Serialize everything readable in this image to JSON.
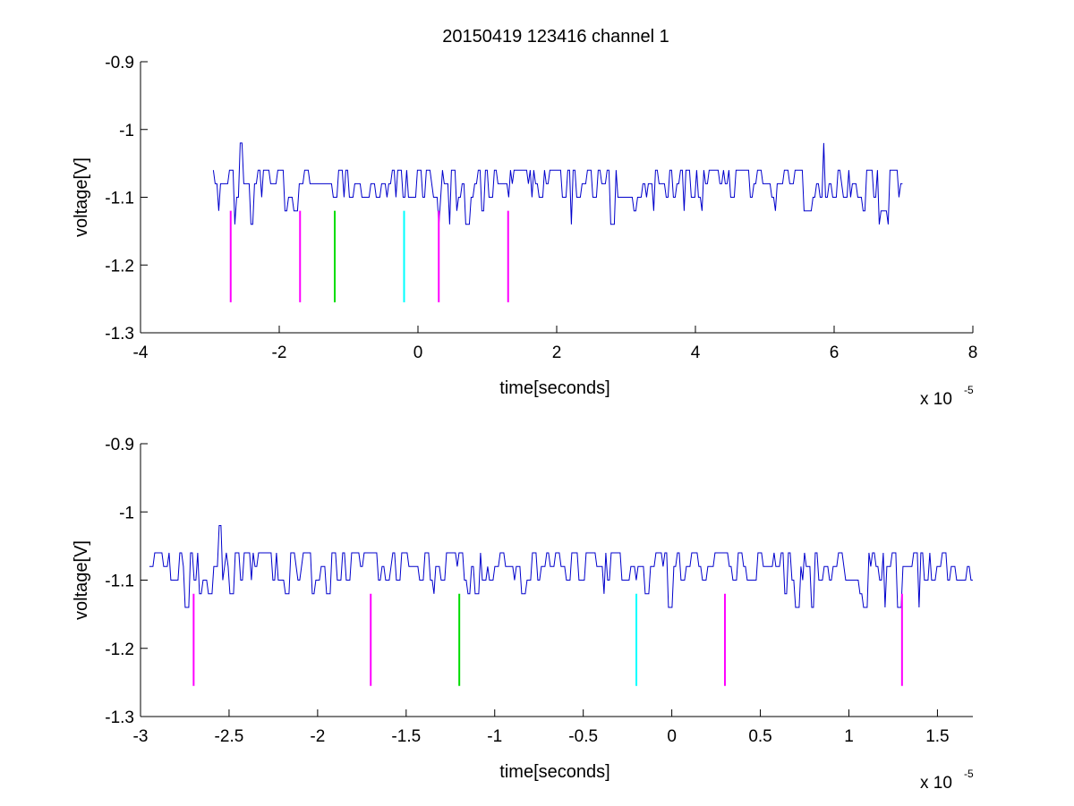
{
  "figure": {
    "title": "20150419 123416 channel 1"
  },
  "colors": {
    "trace": "#0000cc",
    "magenta": "#ff00ff",
    "green": "#00dd00",
    "cyan": "#00ffff"
  },
  "chart_data": [
    {
      "type": "line",
      "title": "20150419 123416 channel 1",
      "xlabel": "time[seconds]",
      "ylabel": "voltage[V]",
      "x_multiplier": "x 10",
      "x_multiplier_exp": "-5",
      "xlim": [
        -4,
        8
      ],
      "ylim": [
        -1.3,
        -0.9
      ],
      "y_reversed": true,
      "xticks": [
        -4,
        -2,
        0,
        2,
        4,
        6,
        8
      ],
      "xtick_labels": [
        "-4",
        "-2",
        "0",
        "2",
        "4",
        "6",
        "8"
      ],
      "yticks": [
        -0.9,
        -1,
        -1.1,
        -1.2,
        -1.3
      ],
      "ytick_labels": [
        "-0.9",
        "-1",
        "-1.1",
        "-1.2",
        "-1.3"
      ],
      "grid": false,
      "series": [
        {
          "style": "noisy-digitized",
          "x_range": [
            -2.95,
            7.0
          ],
          "baseline": -1.1,
          "levels": [
            -1.06,
            -1.08,
            -1.1,
            -1.12,
            -1.14
          ],
          "spikes": [
            {
              "x": -2.55,
              "y": -1.02
            },
            {
              "x": 5.85,
              "y": -1.02
            }
          ],
          "color": "#0000cc"
        }
      ],
      "markers": [
        {
          "x": -2.7,
          "y": [
            -1.12,
            -1.255
          ],
          "color": "#ff00ff"
        },
        {
          "x": -1.7,
          "y": [
            -1.12,
            -1.255
          ],
          "color": "#ff00ff"
        },
        {
          "x": -1.2,
          "y": [
            -1.12,
            -1.255
          ],
          "color": "#00dd00"
        },
        {
          "x": -0.2,
          "y": [
            -1.12,
            -1.255
          ],
          "color": "#00ffff"
        },
        {
          "x": 0.3,
          "y": [
            -1.12,
            -1.255
          ],
          "color": "#ff00ff"
        },
        {
          "x": 1.3,
          "y": [
            -1.12,
            -1.255
          ],
          "color": "#ff00ff"
        }
      ]
    },
    {
      "type": "line",
      "xlabel": "time[seconds]",
      "ylabel": "voltage[V]",
      "x_multiplier": "x 10",
      "x_multiplier_exp": "-5",
      "xlim": [
        -3.0,
        1.7
      ],
      "ylim": [
        -1.3,
        -0.9
      ],
      "y_reversed": true,
      "xticks": [
        -3,
        -2.5,
        -2,
        -1.5,
        -1,
        -0.5,
        0,
        0.5,
        1,
        1.5
      ],
      "xtick_labels": [
        "-3",
        "-2.5",
        "-2",
        "-1.5",
        "-1",
        "-0.5",
        "0",
        "0.5",
        "1",
        "1.5"
      ],
      "yticks": [
        -0.9,
        -1,
        -1.1,
        -1.2,
        -1.3
      ],
      "ytick_labels": [
        "-0.9",
        "-1",
        "-1.1",
        "-1.2",
        "-1.3"
      ],
      "grid": false,
      "series": [
        {
          "style": "noisy-digitized",
          "x_range": [
            -2.95,
            1.7
          ],
          "baseline": -1.1,
          "levels": [
            -1.06,
            -1.08,
            -1.1,
            -1.12,
            -1.14
          ],
          "spikes": [
            {
              "x": -2.55,
              "y": -1.02
            }
          ],
          "color": "#0000cc"
        }
      ],
      "markers": [
        {
          "x": -2.7,
          "y": [
            -1.12,
            -1.255
          ],
          "color": "#ff00ff"
        },
        {
          "x": -1.7,
          "y": [
            -1.12,
            -1.255
          ],
          "color": "#ff00ff"
        },
        {
          "x": -1.2,
          "y": [
            -1.12,
            -1.255
          ],
          "color": "#00dd00"
        },
        {
          "x": -0.2,
          "y": [
            -1.12,
            -1.255
          ],
          "color": "#00ffff"
        },
        {
          "x": 0.3,
          "y": [
            -1.12,
            -1.255
          ],
          "color": "#ff00ff"
        },
        {
          "x": 1.3,
          "y": [
            -1.12,
            -1.255
          ],
          "color": "#ff00ff"
        }
      ]
    }
  ]
}
